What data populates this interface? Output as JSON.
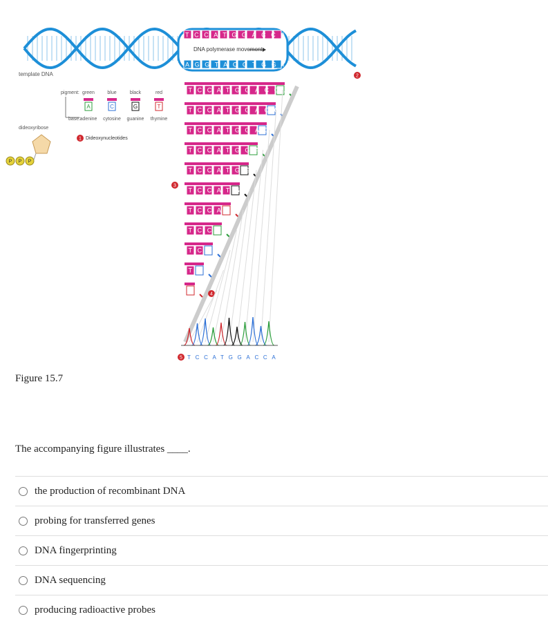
{
  "figure": {
    "template_label": "template DNA",
    "polymerase_label": "DNA polymerase movement",
    "top_strand": "TCCATGGACCA",
    "bottom_strand": "AGGTACCTGGT",
    "pigment_label": "pigment:",
    "pigments": [
      "green",
      "blue",
      "black",
      "red"
    ],
    "base_label": "base:",
    "bases": [
      "adenine",
      "cytosine",
      "guanine",
      "thymine"
    ],
    "base_letters": [
      "A",
      "C",
      "G",
      "T"
    ],
    "sugar_label": "dideoxyribose",
    "phosphate_letter": "P",
    "dideoxy_label": "Dideoxynucleotides",
    "step_numbers": [
      "1",
      "2",
      "3",
      "4",
      "5"
    ],
    "fragments": [
      "TCCATGGACCA",
      "TCCATGGACC",
      "TCCATGGAC",
      "TCCATGGA",
      "TCCATGG",
      "TCCATG",
      "TCCAT",
      "TCCA",
      "TCC",
      "TC",
      "T"
    ],
    "read_sequence": "TCCATGGACCA",
    "caption": "Figure 15.7"
  },
  "question": {
    "text": "The accompanying figure illustrates ____."
  },
  "options": [
    "the production of recombinant DNA",
    "probing for transferred genes",
    "DNA fingerprinting",
    "DNA sequencing",
    "producing radioactive probes"
  ]
}
